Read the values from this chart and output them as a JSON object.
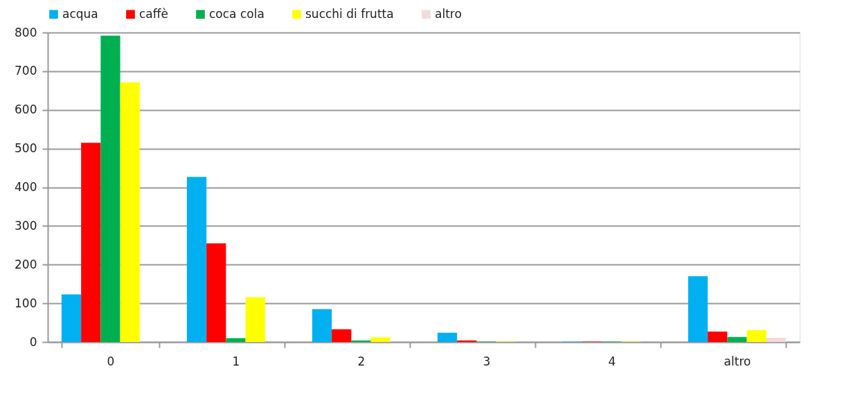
{
  "chart_data": {
    "type": "bar",
    "categories": [
      "0",
      "1",
      "2",
      "3",
      "4",
      "altro"
    ],
    "series": [
      {
        "name": "acqua",
        "color": "#00b0f0",
        "values": [
          123,
          427,
          85,
          24,
          1,
          170
        ]
      },
      {
        "name": "caffè",
        "color": "#ff0000",
        "values": [
          515,
          255,
          33,
          4,
          1,
          27
        ]
      },
      {
        "name": "coca cola",
        "color": "#00b050",
        "values": [
          792,
          10,
          4,
          1,
          1,
          13
        ]
      },
      {
        "name": "succhi di frutta",
        "color": "#ffff00",
        "values": [
          671,
          116,
          12,
          1,
          1,
          31
        ]
      },
      {
        "name": "altro",
        "color": "#f2dcdb",
        "values": [
          null,
          null,
          null,
          null,
          null,
          11
        ]
      }
    ],
    "ylim": [
      0,
      800
    ],
    "yticks": [
      0,
      100,
      200,
      300,
      400,
      500,
      600,
      700,
      800
    ],
    "grid": "y",
    "legend": "top"
  }
}
